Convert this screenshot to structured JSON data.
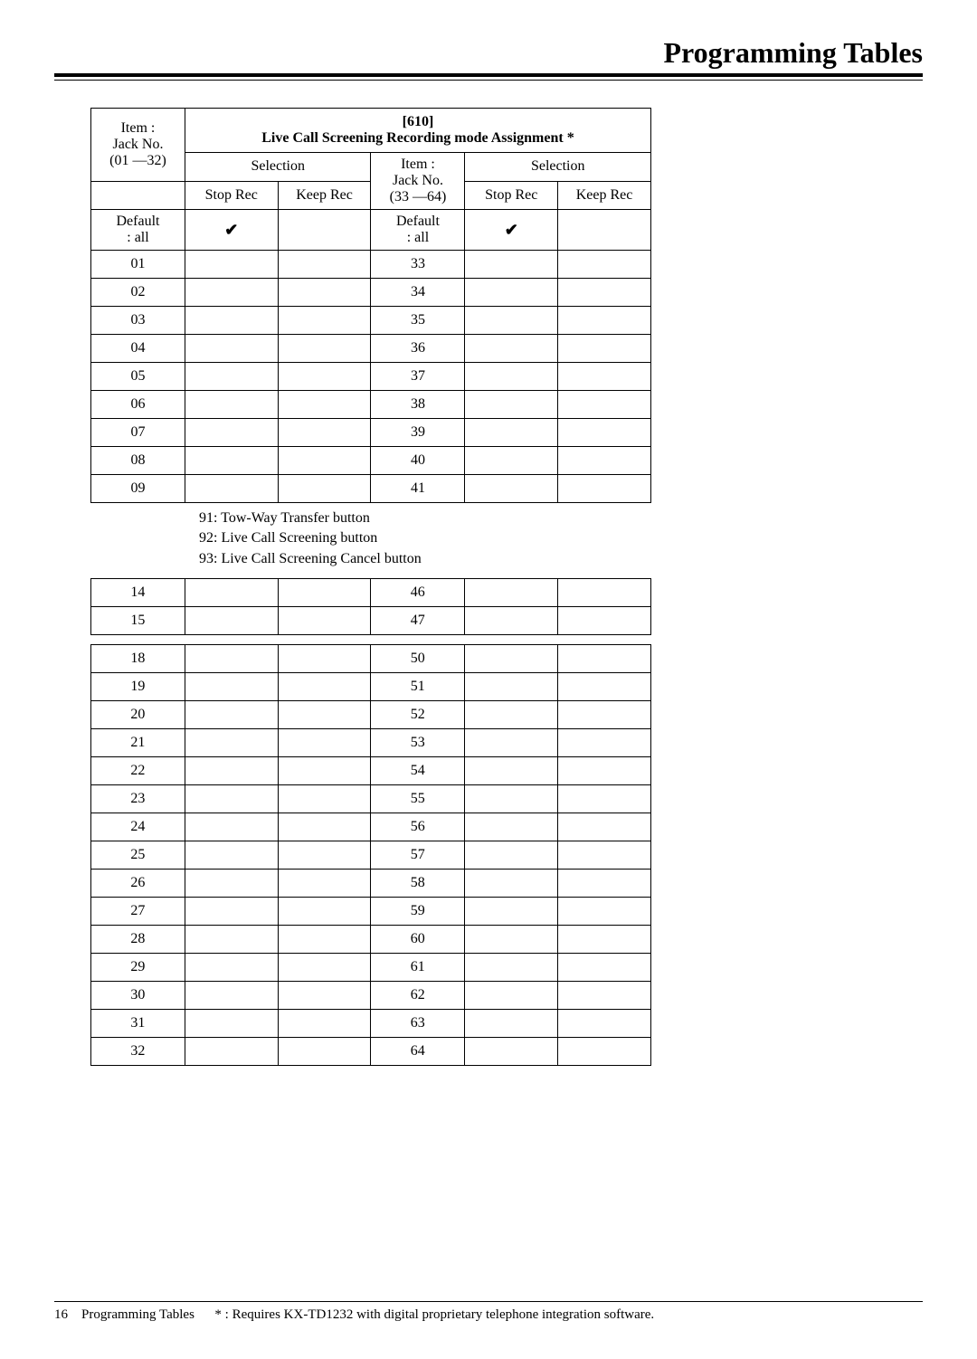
{
  "page_title": "Programming Tables",
  "table610": {
    "code": "[610]",
    "title": "Live Call Screening Recording mode Assignment *",
    "left": {
      "item_header": "Item :\nJack No.\n(01 —32)",
      "sel_header": "Selection",
      "sub_a": "Stop Rec",
      "sub_b": "Keep Rec",
      "default_label": "Default\n: all",
      "default_check": "✔",
      "rows": [
        "01",
        "02",
        "03",
        "04",
        "05",
        "06",
        "07",
        "08",
        "09"
      ]
    },
    "right": {
      "item_header": "Item :\nJack No.\n(33 —64)",
      "sel_header": "Selection",
      "sub_a": "Stop Rec",
      "sub_b": "Keep Rec",
      "default_label": "Default\n: all",
      "default_check": "✔",
      "rows": [
        "33",
        "34",
        "35",
        "36",
        "37",
        "38",
        "39",
        "40",
        "41"
      ]
    }
  },
  "notes": {
    "n91": "91:  Tow-Way Transfer button",
    "n92": "92:  Live Call Screening button",
    "n93": "93:  Live Call Screening Cancel button"
  },
  "frag1": {
    "left": [
      "14",
      "15"
    ],
    "right": [
      "46",
      "47"
    ]
  },
  "frag2": {
    "left": [
      "18",
      "19",
      "20",
      "21",
      "22",
      "23",
      "24",
      "25",
      "26",
      "27",
      "28",
      "29",
      "30",
      "31",
      "32"
    ],
    "right": [
      "50",
      "51",
      "52",
      "53",
      "54",
      "55",
      "56",
      "57",
      "58",
      "59",
      "60",
      "61",
      "62",
      "63",
      "64"
    ]
  },
  "footer": {
    "page_no": "16",
    "section": "Programming Tables",
    "note": "* : Requires KX-TD1232 with digital proprietary telephone integration software."
  }
}
